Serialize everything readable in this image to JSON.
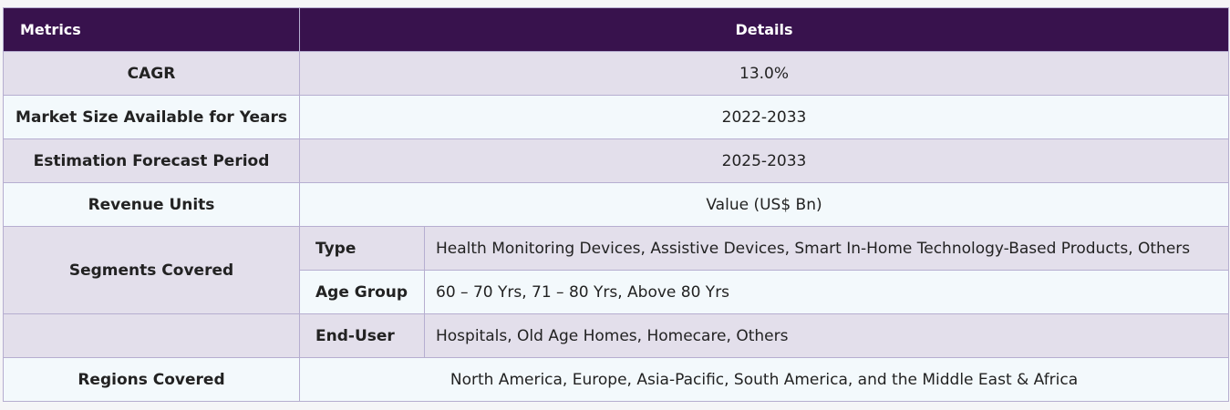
{
  "header": {
    "metrics": "Metrics",
    "details": "Details"
  },
  "rows": {
    "cagr": {
      "label": "CAGR",
      "value": "13.0%"
    },
    "market_size": {
      "label": "Market Size Available for Years",
      "value": "2022-2033"
    },
    "forecast": {
      "label": "Estimation Forecast Period",
      "value": "2025-2033"
    },
    "revenue_units": {
      "label": "Revenue Units",
      "value": "Value (US$ Bn)"
    },
    "segments": {
      "label": "Segments Covered",
      "items": [
        {
          "name": "Type",
          "value": "Health Monitoring Devices, Assistive Devices, Smart In-Home Technology-Based Products, Others"
        },
        {
          "name": "Age Group",
          "value": "60 – 70 Yrs, 71 – 80 Yrs, Above 80 Yrs"
        },
        {
          "name": "End-User",
          "value": "Hospitals, Old Age Homes, Homecare, Others"
        }
      ]
    },
    "regions": {
      "label": "Regions Covered",
      "value": "North America, Europe, Asia-Pacific, South America, and the Middle East & Africa"
    }
  }
}
